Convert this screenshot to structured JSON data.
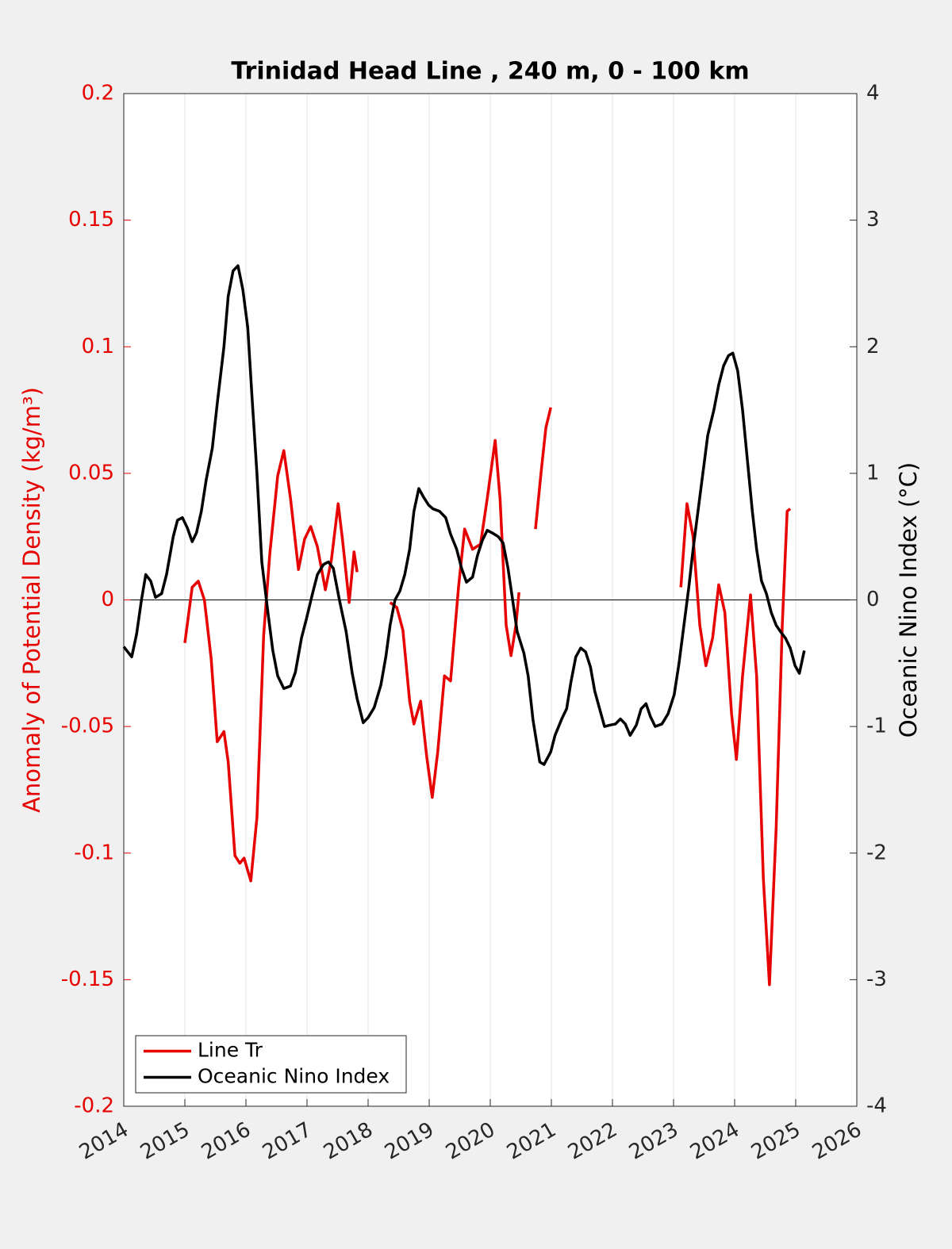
{
  "chart_data": {
    "type": "line",
    "title": "Trinidad Head Line , 240 m, 0 - 100 km",
    "ylabel": "Anomaly of Potential Density (kg/m³)",
    "y2label": "Oceanic Nino Index (°C)",
    "xlim": [
      2014,
      2026
    ],
    "xticks": [
      2014,
      2015,
      2016,
      2017,
      2018,
      2019,
      2020,
      2021,
      2022,
      2023,
      2024,
      2025,
      2026
    ],
    "ylim": [
      -0.2,
      0.2
    ],
    "yticks": [
      0.2,
      0.15,
      0.1,
      0.05,
      0,
      -0.05,
      -0.1,
      -0.15,
      -0.2
    ],
    "y2lim": [
      -4,
      4
    ],
    "y2ticks": [
      4,
      3,
      2,
      1,
      0,
      -1,
      -2,
      -3,
      -4
    ],
    "grid": "x",
    "legend": "lower left",
    "series": [
      {
        "name": "Line Tr",
        "color": "#e60000",
        "x": [
          2015.0,
          2015.12,
          2015.22,
          2015.32,
          2015.43,
          2015.53,
          2015.64,
          2015.71,
          2015.82,
          2015.9,
          2015.97,
          2016.08,
          2016.18,
          2016.29,
          2016.39,
          2016.52,
          2016.62,
          2016.73,
          2016.86,
          2016.96,
          2017.06,
          2017.17,
          2017.3,
          2017.4,
          2017.51,
          2017.58,
          2017.69,
          2017.77,
          2017.82,
          2018.1,
          2018.36,
          2018.47,
          2018.57,
          2018.68,
          2018.75,
          2018.86,
          2018.96,
          2019.05,
          2019.14,
          2019.25,
          2019.35,
          2019.48,
          2019.58,
          2019.71,
          2019.84,
          2019.95,
          2020.08,
          2020.16,
          2020.26,
          2020.34,
          2020.42,
          2020.47,
          2020.6,
          2020.74,
          2020.83,
          2020.91,
          2020.99,
          2022.0,
          2023.12,
          2023.22,
          2023.32,
          2023.43,
          2023.53,
          2023.64,
          2023.74,
          2023.84,
          2023.95,
          2024.03,
          2024.13,
          2024.26,
          2024.36,
          2024.47,
          2024.57,
          2024.68,
          2024.78,
          2024.86,
          2024.91
        ],
        "values": [
          -0.017,
          0.005,
          0.0074,
          0.0,
          -0.023,
          -0.056,
          -0.052,
          -0.064,
          -0.101,
          -0.104,
          -0.102,
          -0.111,
          -0.086,
          -0.014,
          0.018,
          0.049,
          0.059,
          0.04,
          0.012,
          0.024,
          0.029,
          0.021,
          0.004,
          0.016,
          0.038,
          0.024,
          -0.001,
          0.019,
          0.011,
          null,
          -0.001,
          -0.003,
          -0.012,
          -0.04,
          -0.049,
          -0.04,
          -0.062,
          -0.078,
          -0.06,
          -0.03,
          -0.032,
          0.005,
          0.028,
          0.02,
          0.022,
          0.04,
          0.063,
          0.04,
          -0.01,
          -0.022,
          -0.01,
          0.003,
          null,
          0.028,
          0.05,
          0.068,
          0.076,
          null,
          0.005,
          0.038,
          0.025,
          -0.01,
          -0.026,
          -0.015,
          0.006,
          -0.005,
          -0.045,
          -0.063,
          -0.03,
          0.002,
          -0.03,
          -0.11,
          -0.152,
          -0.09,
          -0.01,
          0.035,
          0.036
        ]
      },
      {
        "name": "Oceanic Nino Index",
        "color": "#000000",
        "axis": "y2",
        "x": [
          2014.0,
          2014.13,
          2014.21,
          2014.29,
          2014.36,
          2014.44,
          2014.52,
          2014.62,
          2014.7,
          2014.81,
          2014.88,
          2014.96,
          2015.04,
          2015.12,
          2015.19,
          2015.27,
          2015.35,
          2015.45,
          2015.53,
          2015.64,
          2015.71,
          2015.79,
          2015.87,
          2015.95,
          2016.03,
          2016.1,
          2016.18,
          2016.26,
          2016.36,
          2016.44,
          2016.52,
          2016.62,
          2016.73,
          2016.81,
          2016.91,
          2016.99,
          2017.09,
          2017.17,
          2017.27,
          2017.35,
          2017.43,
          2017.53,
          2017.64,
          2017.74,
          2017.82,
          2017.92,
          2018.0,
          2018.1,
          2018.21,
          2018.29,
          2018.36,
          2018.44,
          2018.52,
          2018.6,
          2018.68,
          2018.75,
          2018.83,
          2018.91,
          2018.99,
          2019.06,
          2019.17,
          2019.27,
          2019.35,
          2019.45,
          2019.53,
          2019.61,
          2019.71,
          2019.79,
          2019.87,
          2019.95,
          2020.03,
          2020.13,
          2020.21,
          2020.29,
          2020.36,
          2020.44,
          2020.55,
          2020.62,
          2020.7,
          2020.81,
          2020.88,
          2020.99,
          2021.06,
          2021.17,
          2021.25,
          2021.32,
          2021.4,
          2021.48,
          2021.56,
          2021.64,
          2021.71,
          2021.79,
          2021.87,
          2021.95,
          2022.05,
          2022.13,
          2022.21,
          2022.29,
          2022.39,
          2022.47,
          2022.55,
          2022.62,
          2022.7,
          2022.81,
          2022.91,
          2023.01,
          2023.09,
          2023.17,
          2023.25,
          2023.32,
          2023.4,
          2023.48,
          2023.56,
          2023.66,
          2023.74,
          2023.82,
          2023.9,
          2023.97,
          2024.05,
          2024.13,
          2024.21,
          2024.29,
          2024.36,
          2024.44,
          2024.52,
          2024.6,
          2024.68,
          2024.75,
          2024.83,
          2024.91,
          2024.99,
          2025.06,
          2025.14
        ],
        "values": [
          -0.37,
          -0.45,
          -0.27,
          0.0,
          0.2,
          0.15,
          0.02,
          0.05,
          0.2,
          0.5,
          0.63,
          0.65,
          0.57,
          0.46,
          0.53,
          0.7,
          0.95,
          1.2,
          1.55,
          2.0,
          2.4,
          2.6,
          2.64,
          2.45,
          2.15,
          1.6,
          1.0,
          0.3,
          -0.1,
          -0.4,
          -0.6,
          -0.7,
          -0.68,
          -0.57,
          -0.3,
          -0.15,
          0.05,
          0.2,
          0.28,
          0.3,
          0.25,
          0.0,
          -0.25,
          -0.58,
          -0.78,
          -0.97,
          -0.93,
          -0.85,
          -0.67,
          -0.45,
          -0.2,
          0.0,
          0.07,
          0.2,
          0.4,
          0.7,
          0.88,
          0.81,
          0.75,
          0.72,
          0.7,
          0.65,
          0.52,
          0.4,
          0.25,
          0.14,
          0.18,
          0.35,
          0.47,
          0.55,
          0.53,
          0.5,
          0.45,
          0.25,
          0.02,
          -0.25,
          -0.42,
          -0.6,
          -0.95,
          -1.28,
          -1.3,
          -1.2,
          -1.07,
          -0.94,
          -0.86,
          -0.65,
          -0.45,
          -0.38,
          -0.41,
          -0.53,
          -0.72,
          -0.86,
          -1.0,
          -0.99,
          -0.98,
          -0.94,
          -0.98,
          -1.07,
          -0.99,
          -0.86,
          -0.82,
          -0.92,
          -1.0,
          -0.98,
          -0.9,
          -0.75,
          -0.5,
          -0.2,
          0.1,
          0.4,
          0.7,
          1.0,
          1.3,
          1.5,
          1.7,
          1.85,
          1.93,
          1.95,
          1.81,
          1.5,
          1.1,
          0.7,
          0.4,
          0.15,
          0.05,
          -0.1,
          -0.2,
          -0.25,
          -0.3,
          -0.38,
          -0.52,
          -0.58,
          -0.4
        ]
      }
    ]
  }
}
